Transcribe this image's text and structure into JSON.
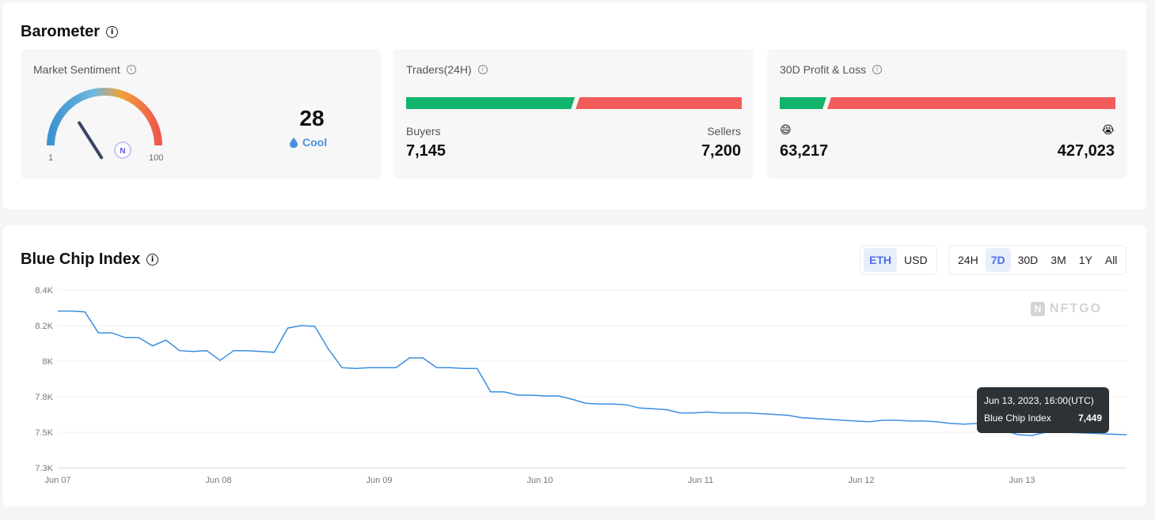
{
  "barometer": {
    "title": "Barometer",
    "sentiment": {
      "title": "Market Sentiment",
      "value": "28",
      "status": "Cool",
      "min_label": "1",
      "max_label": "100",
      "level_fraction": 0.28
    },
    "traders": {
      "title": "Traders(24H)",
      "buyers_label": "Buyers",
      "sellers_label": "Sellers",
      "buyers_value": "7,145",
      "sellers_value": "7,200",
      "buyers_share": 0.4981
    },
    "pnl": {
      "title": "30D Profit & Loss",
      "profit_value": "63,217",
      "loss_value": "427,023",
      "profit_emoji": "😄",
      "loss_emoji": "😭",
      "profit_share": 0.129
    }
  },
  "blue_chip": {
    "title": "Blue Chip Index",
    "currency_toggle": [
      {
        "label": "ETH",
        "active": true
      },
      {
        "label": "USD",
        "active": false
      }
    ],
    "range_toggle": [
      {
        "label": "24H",
        "active": false
      },
      {
        "label": "7D",
        "active": true
      },
      {
        "label": "30D",
        "active": false
      },
      {
        "label": "3M",
        "active": false
      },
      {
        "label": "1Y",
        "active": false
      },
      {
        "label": "All",
        "active": false
      }
    ],
    "watermark": "NFTGO",
    "tooltip": {
      "date": "Jun 13, 2023, 16:00(UTC)",
      "label": "Blue Chip Index",
      "value": "7,449"
    }
  },
  "colors": {
    "buyers": "#10b46a",
    "sellers": "#f45b5b",
    "line": "#3a8ee0",
    "status": "#4a90e2"
  },
  "chart_data": {
    "type": "line",
    "x_tick_labels": [
      "Jun 07",
      "Jun 08",
      "Jun 09",
      "Jun 10",
      "Jun 11",
      "Jun 12",
      "Jun 13"
    ],
    "y_tick_labels": [
      "8.4K",
      "8.2K",
      "8K",
      "7.8K",
      "7.5K",
      "7.3K"
    ],
    "ylim": [
      7300,
      8400
    ],
    "grid": true,
    "series": [
      {
        "values": [
          8270,
          8270,
          8265,
          8135,
          8135,
          8105,
          8105,
          8055,
          8090,
          8025,
          8020,
          8025,
          7965,
          8025,
          8025,
          8020,
          8015,
          8165,
          8180,
          8175,
          8035,
          7920,
          7915,
          7920,
          7920,
          7920,
          7980,
          7980,
          7920,
          7920,
          7915,
          7915,
          7770,
          7770,
          7750,
          7750,
          7745,
          7745,
          7725,
          7700,
          7695,
          7695,
          7690,
          7670,
          7665,
          7660,
          7640,
          7640,
          7645,
          7640,
          7640,
          7640,
          7635,
          7630,
          7625,
          7610,
          7605,
          7600,
          7595,
          7590,
          7585,
          7595,
          7595,
          7590,
          7590,
          7585,
          7575,
          7570,
          7575,
          7530,
          7530,
          7505,
          7500,
          7520,
          7520,
          7518,
          7515,
          7512,
          7508,
          7505
        ]
      }
    ]
  }
}
